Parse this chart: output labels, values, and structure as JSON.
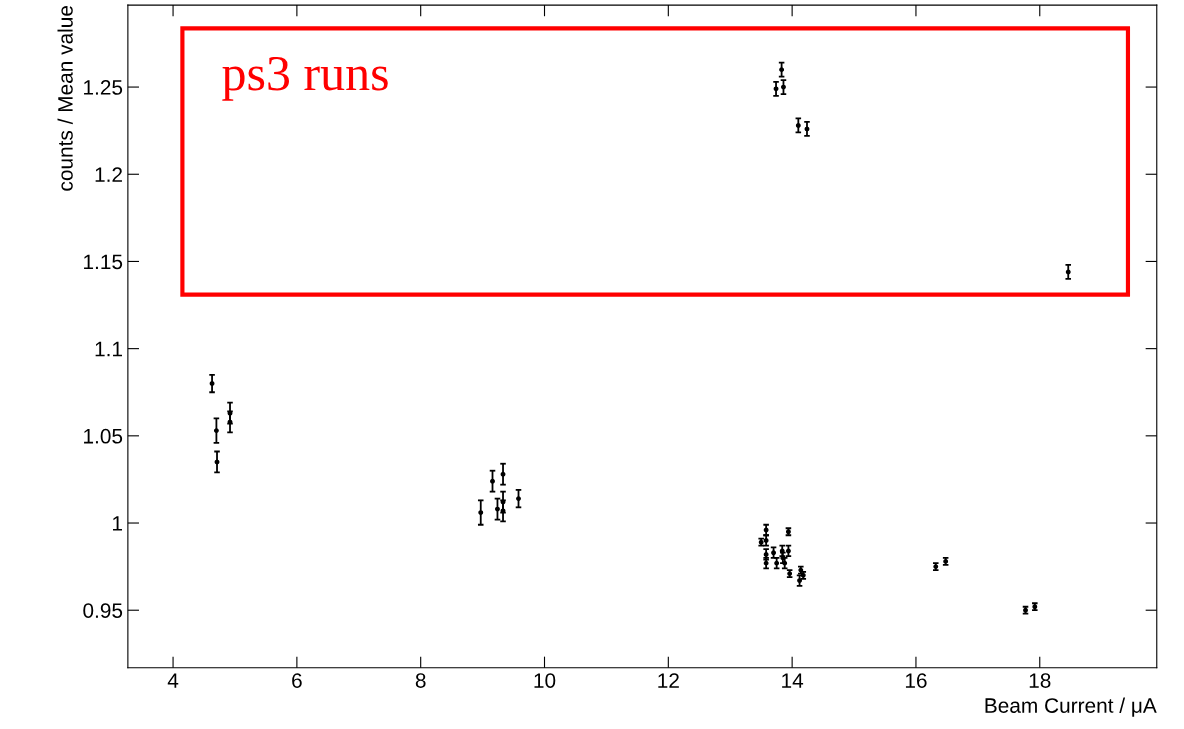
{
  "chart_data": {
    "type": "scatter",
    "xlabel": "Beam Current / μA",
    "ylabel": "counts / Mean value",
    "annotations": [
      "ps3 runs"
    ],
    "xlim": [
      3.27,
      19.89
    ],
    "ylim": [
      0.917,
      1.297
    ],
    "xticks": [
      4,
      6,
      8,
      10,
      12,
      14,
      16,
      18
    ],
    "yticks": [
      0.95,
      1,
      1.05,
      1.1,
      1.15,
      1.2,
      1.25
    ],
    "grid": false,
    "legend": false,
    "marker": "circle",
    "series": [
      {
        "color": "#000000",
        "x": [
          4.63,
          4.7,
          4.71,
          4.92,
          4.92,
          8.97,
          9.16,
          9.33,
          9.24,
          9.33,
          9.33,
          9.58,
          13.83,
          13.74,
          13.86,
          14.1,
          14.24,
          18.46,
          13.58,
          13.94,
          13.5,
          13.58,
          13.58,
          13.58,
          13.7,
          13.75,
          13.84,
          13.85,
          13.88,
          13.94,
          13.96,
          14.14,
          14.18,
          14.12,
          16.32,
          16.48,
          17.77,
          17.92
        ],
        "values": [
          1.08,
          1.053,
          1.035,
          1.063,
          1.058,
          1.006,
          1.024,
          1.028,
          1.008,
          1.012,
          1.007,
          1.014,
          1.26,
          1.249,
          1.25,
          1.228,
          1.226,
          1.144,
          0.996,
          0.995,
          0.989,
          0.99,
          0.982,
          0.977,
          0.983,
          0.977,
          0.984,
          0.98,
          0.977,
          0.984,
          0.971,
          0.973,
          0.97,
          0.967,
          0.975,
          0.978,
          0.95,
          0.952
        ],
        "errors": [
          0.005,
          0.007,
          0.006,
          0.006,
          0.006,
          0.007,
          0.006,
          0.006,
          0.006,
          0.006,
          0.006,
          0.005,
          0.004,
          0.004,
          0.004,
          0.004,
          0.004,
          0.004,
          0.003,
          0.002,
          0.002,
          0.003,
          0.003,
          0.003,
          0.003,
          0.003,
          0.003,
          0.003,
          0.003,
          0.003,
          0.002,
          0.002,
          0.002,
          0.003,
          0.002,
          0.002,
          0.002,
          0.002
        ]
      }
    ]
  }
}
